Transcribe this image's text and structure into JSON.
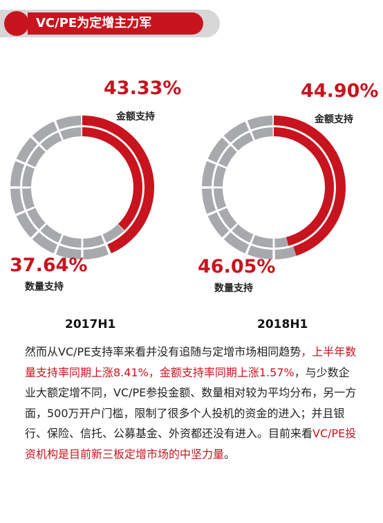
{
  "banner": {
    "title": "VC/PE为定增主力军"
  },
  "chart_data": [
    {
      "type": "pie",
      "title": "2017H1",
      "series": [
        {
          "name": "金额支持",
          "value": 43.33,
          "label": "43.33%"
        },
        {
          "name": "数量支持",
          "value": 37.64,
          "label": "37.64%"
        }
      ]
    },
    {
      "type": "pie",
      "title": "2018H1",
      "series": [
        {
          "name": "金额支持",
          "value": 44.9,
          "label": "44.90%"
        },
        {
          "name": "数量支持",
          "value": 46.05,
          "label": "46.05%"
        }
      ]
    }
  ],
  "colors": {
    "accent": "#c8141e",
    "ring_gray": "#a7a9ad",
    "banner_gray": "#d7d7d7"
  },
  "paragraph": {
    "p1": "然而从VC/PE支持率来看并没有追随与定增市场相同趋势",
    "p2": "，上半年数量支持率同期上涨8.41%，金额支持率同期上涨1.57%",
    "p3": "，与少数企业大额定增不同，VC/PE参投金额、数量相对较为平均分布，另一方面，500万开户门槛，限制了很多个人投机的资金的进入；并且银行、保险、信托、公募基金、外资都还没有进入。目前来看",
    "p4": "VC/PE投资机构是目前新三板定增市场的中坚力量",
    "p5": "。"
  }
}
